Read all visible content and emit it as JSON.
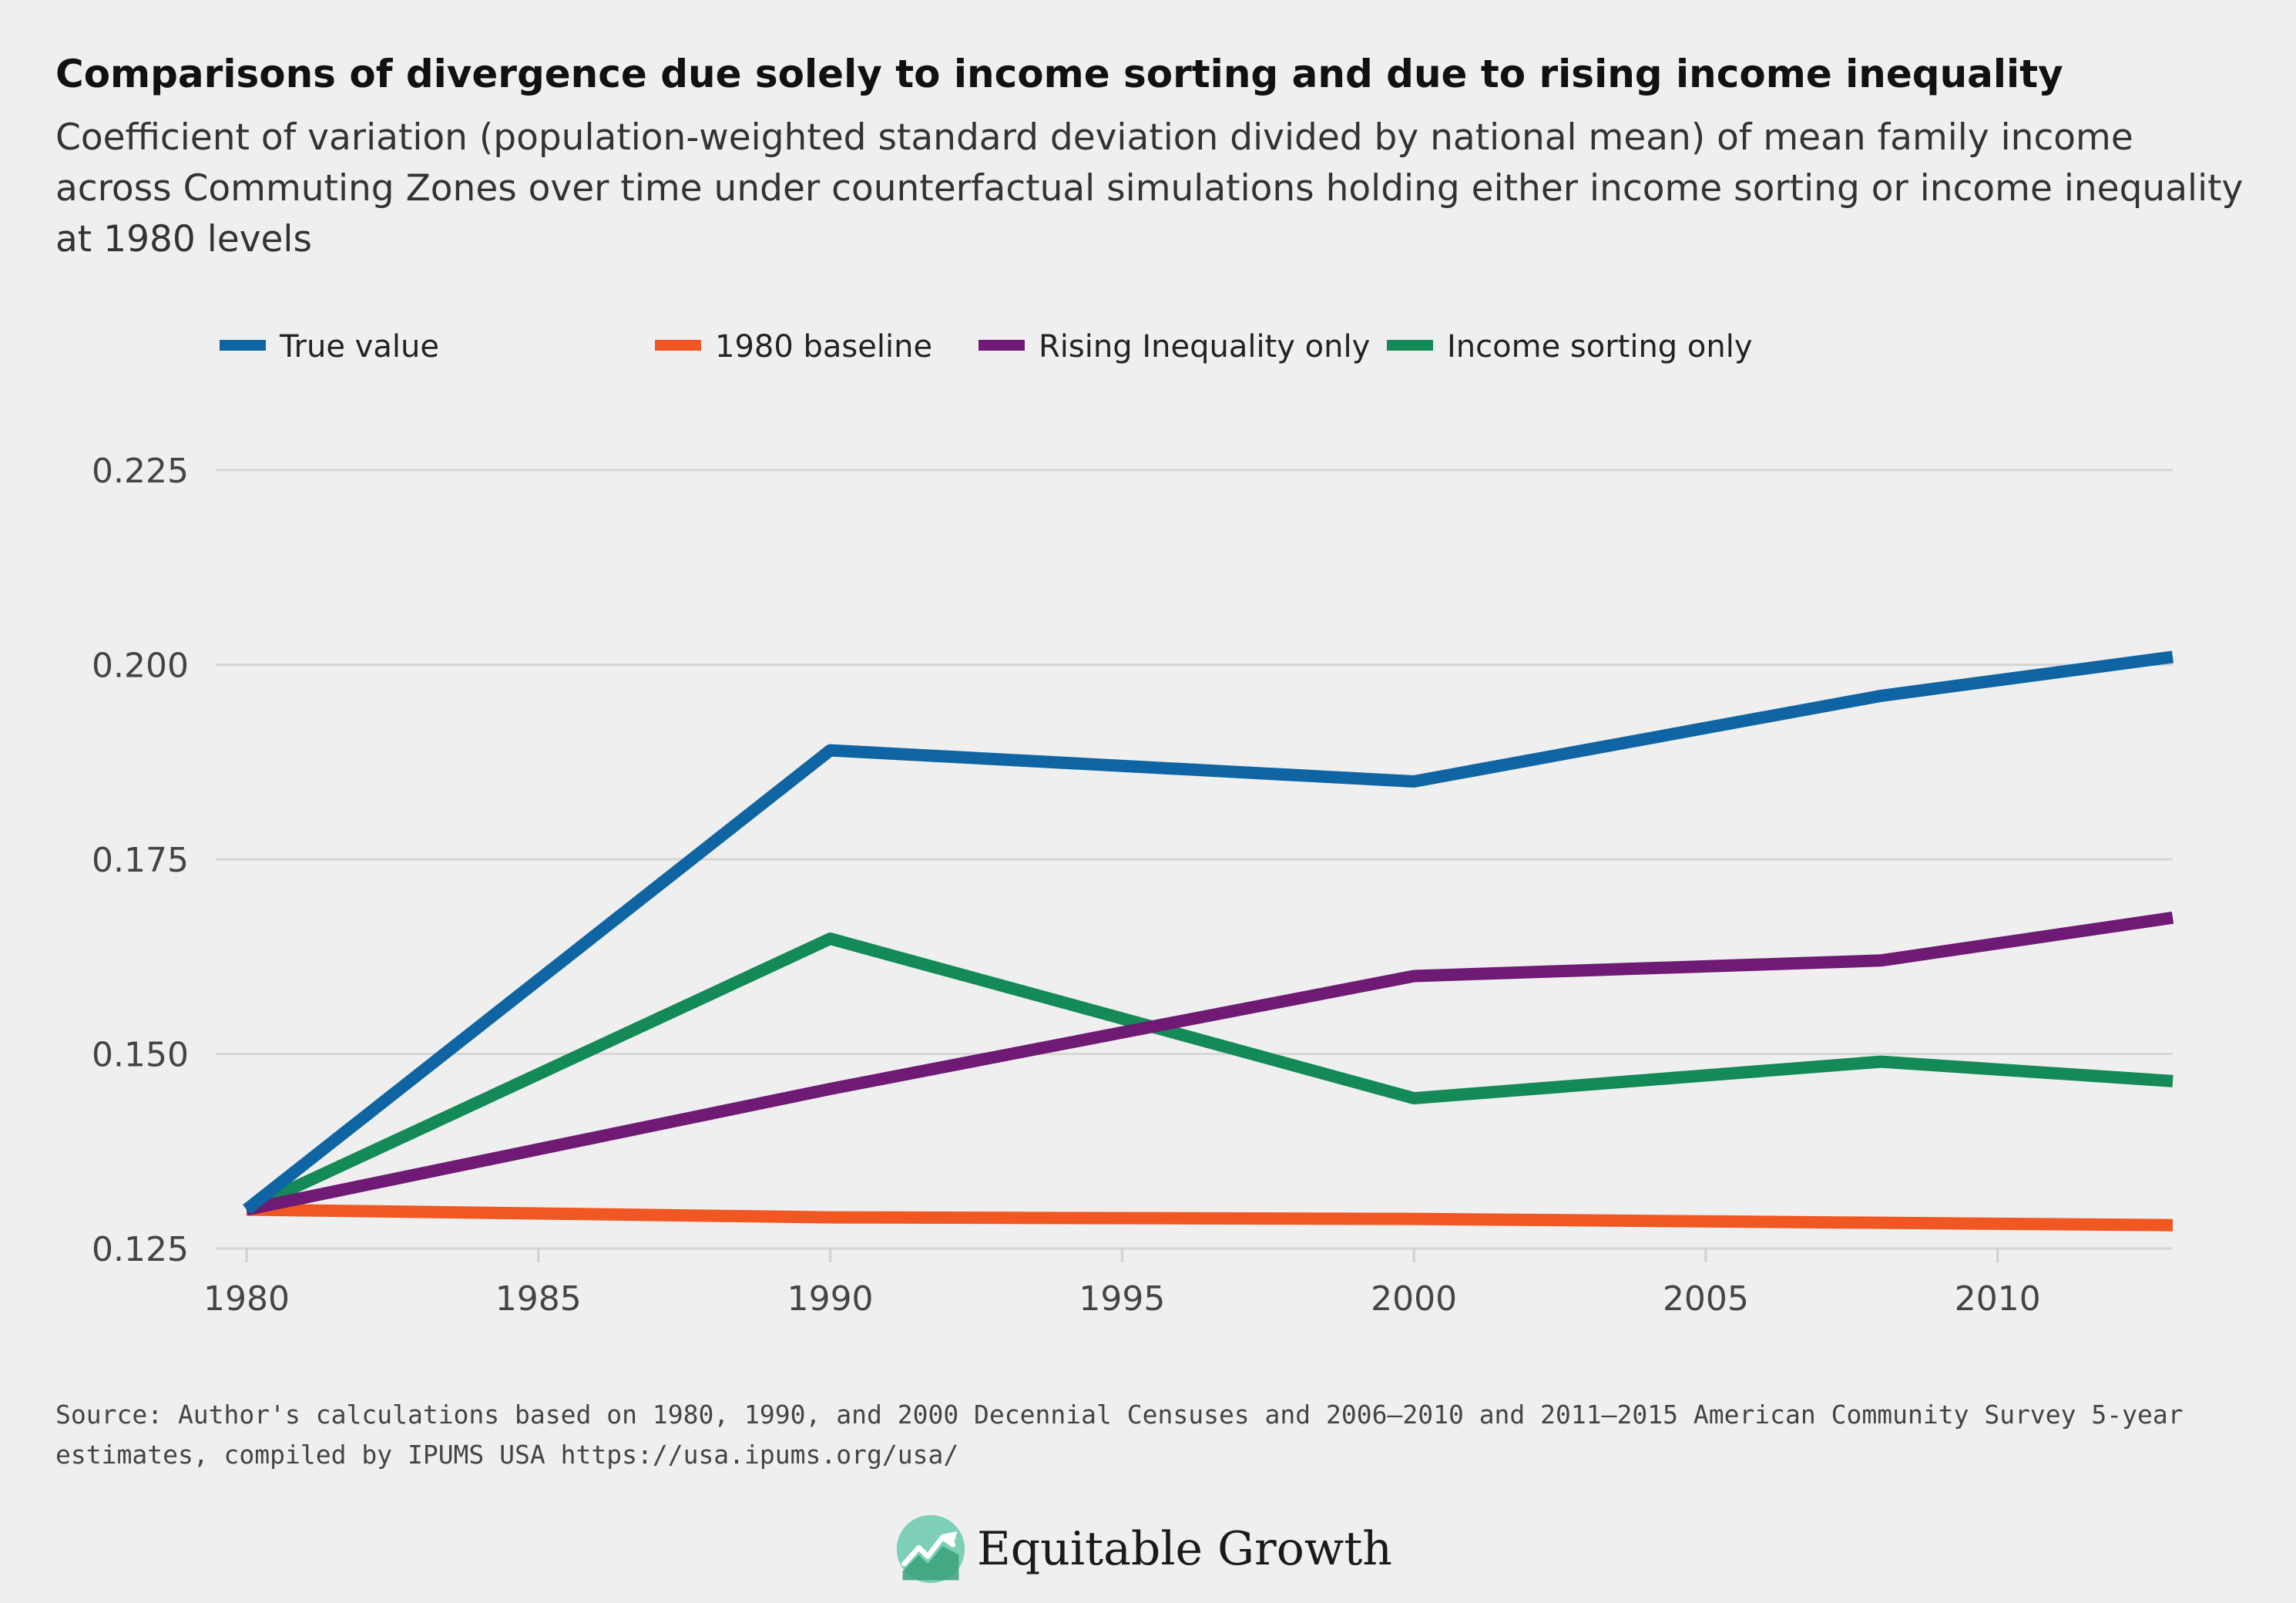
{
  "header": {
    "title": "Comparisons of divergence due solely to income sorting and due to rising income inequality",
    "subtitle": "Coefficient of variation (population-weighted standard deviation divided by national mean) of mean family income across Commuting Zones over time under counterfactual simulations holding either income sorting or income inequality at 1980 levels"
  },
  "footer": {
    "source": "Source: Author's calculations based on 1980, 1990, and 2000 Decennial Censuses and 2006—2010 and 2011—2015 American Community Survey 5-year estimates, compiled by IPUMS USA https://usa.ipums.org/usa/",
    "logo_text": "Equitable Growth"
  },
  "chart_data": {
    "type": "line",
    "title": "Comparisons of divergence due solely to income sorting and due to rising income inequality",
    "xlabel": "",
    "ylabel": "",
    "x_ticks": [
      1980,
      1985,
      1990,
      1995,
      2000,
      2005,
      2010
    ],
    "y_ticks": [
      "0.125",
      "0.150",
      "0.175",
      "0.200",
      "0.225"
    ],
    "xlim": [
      1980,
      2013
    ],
    "ylim": [
      0.125,
      0.225
    ],
    "grid": true,
    "legend_position": "top-left",
    "series": [
      {
        "name": "True value",
        "color": "#0f65a3",
        "points": [
          [
            1980,
            0.13
          ],
          [
            1990,
            0.189
          ],
          [
            2000,
            0.185
          ],
          [
            2008,
            0.196
          ],
          [
            2013,
            0.201
          ]
        ]
      },
      {
        "name": "1980 baseline",
        "color": "#f15722",
        "points": [
          [
            1980,
            0.13
          ],
          [
            1990,
            0.129
          ],
          [
            2000,
            0.1288
          ],
          [
            2008,
            0.1283
          ],
          [
            2013,
            0.128
          ]
        ]
      },
      {
        "name": "Rising Inequality only",
        "color": "#6f1a74",
        "points": [
          [
            1980,
            0.13
          ],
          [
            1990,
            0.1455
          ],
          [
            2000,
            0.16
          ],
          [
            2008,
            0.162
          ],
          [
            2013,
            0.1675
          ]
        ]
      },
      {
        "name": "Income sorting only",
        "color": "#138a57",
        "points": [
          [
            1980,
            0.13
          ],
          [
            1990,
            0.1648
          ],
          [
            2000,
            0.1443
          ],
          [
            2008,
            0.149
          ],
          [
            2013,
            0.1465
          ]
        ]
      }
    ]
  }
}
